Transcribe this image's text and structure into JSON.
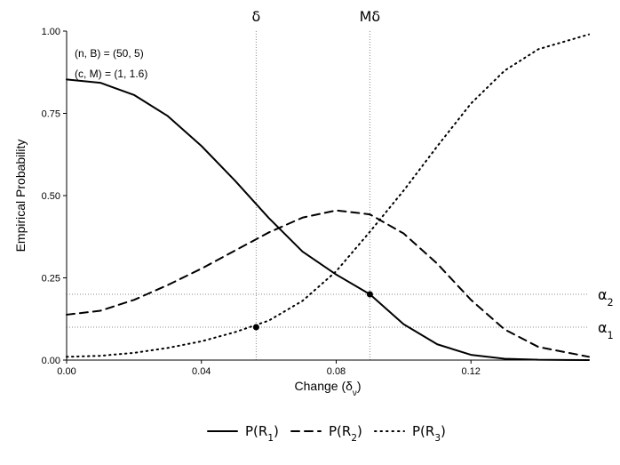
{
  "chart_data": {
    "type": "line",
    "xlabel": "Change (δ",
    "xlabel_sub": "ν",
    "xlabel_close": ")",
    "ylabel": "Empirical Probability",
    "xlim": [
      0,
      0.155
    ],
    "ylim": [
      0,
      1
    ],
    "x_ticks": [
      0.0,
      0.04,
      0.08,
      0.12
    ],
    "x_tick_labels": [
      "0.00",
      "0.04",
      "0.08",
      "0.12"
    ],
    "y_ticks": [
      0,
      0.25,
      0.5,
      0.75,
      1.0
    ],
    "y_tick_labels": [
      "0.00",
      "0.25",
      "0.50",
      "0.75",
      "1.00"
    ],
    "annotations": [
      "(n, B) = (50, 5)",
      "(c, M) = (1, 1.6)"
    ],
    "vlines": [
      {
        "x": 0.05625,
        "label": "δ"
      },
      {
        "x": 0.09,
        "label": "Mδ"
      }
    ],
    "hlines": [
      {
        "y": 0.2,
        "label": "α",
        "sub": "2"
      },
      {
        "y": 0.1,
        "label": "α",
        "sub": "1"
      }
    ],
    "points": [
      {
        "x": 0.05625,
        "y": 0.1
      },
      {
        "x": 0.09,
        "y": 0.2
      }
    ],
    "series": [
      {
        "name": "P(R1)",
        "label_main": "P(R",
        "label_sub": "1",
        "label_close": ")",
        "style": "solid",
        "x": [
          0.0,
          0.01,
          0.02,
          0.03,
          0.04,
          0.05,
          0.06,
          0.07,
          0.08,
          0.09,
          0.1,
          0.11,
          0.12,
          0.13,
          0.14,
          0.155
        ],
        "y": [
          0.853,
          0.843,
          0.806,
          0.742,
          0.651,
          0.545,
          0.432,
          0.33,
          0.26,
          0.2,
          0.109,
          0.048,
          0.016,
          0.004,
          0.001,
          0.0
        ]
      },
      {
        "name": "P(R2)",
        "label_main": "P(R",
        "label_sub": "2",
        "label_close": ")",
        "style": "dashed",
        "x": [
          0.0,
          0.01,
          0.02,
          0.03,
          0.04,
          0.05,
          0.06,
          0.07,
          0.08,
          0.09,
          0.1,
          0.11,
          0.12,
          0.13,
          0.14,
          0.155
        ],
        "y": [
          0.138,
          0.15,
          0.183,
          0.228,
          0.278,
          0.333,
          0.388,
          0.433,
          0.455,
          0.443,
          0.385,
          0.293,
          0.183,
          0.093,
          0.04,
          0.01
        ]
      },
      {
        "name": "P(R3)",
        "label_main": "P(R",
        "label_sub": "3",
        "label_close": ")",
        "style": "dotted",
        "x": [
          0.0,
          0.01,
          0.02,
          0.03,
          0.04,
          0.05,
          0.06,
          0.07,
          0.08,
          0.09,
          0.1,
          0.11,
          0.12,
          0.13,
          0.14,
          0.155
        ],
        "y": [
          0.01,
          0.013,
          0.022,
          0.037,
          0.057,
          0.085,
          0.12,
          0.18,
          0.27,
          0.39,
          0.515,
          0.65,
          0.78,
          0.88,
          0.945,
          0.99
        ]
      }
    ]
  }
}
